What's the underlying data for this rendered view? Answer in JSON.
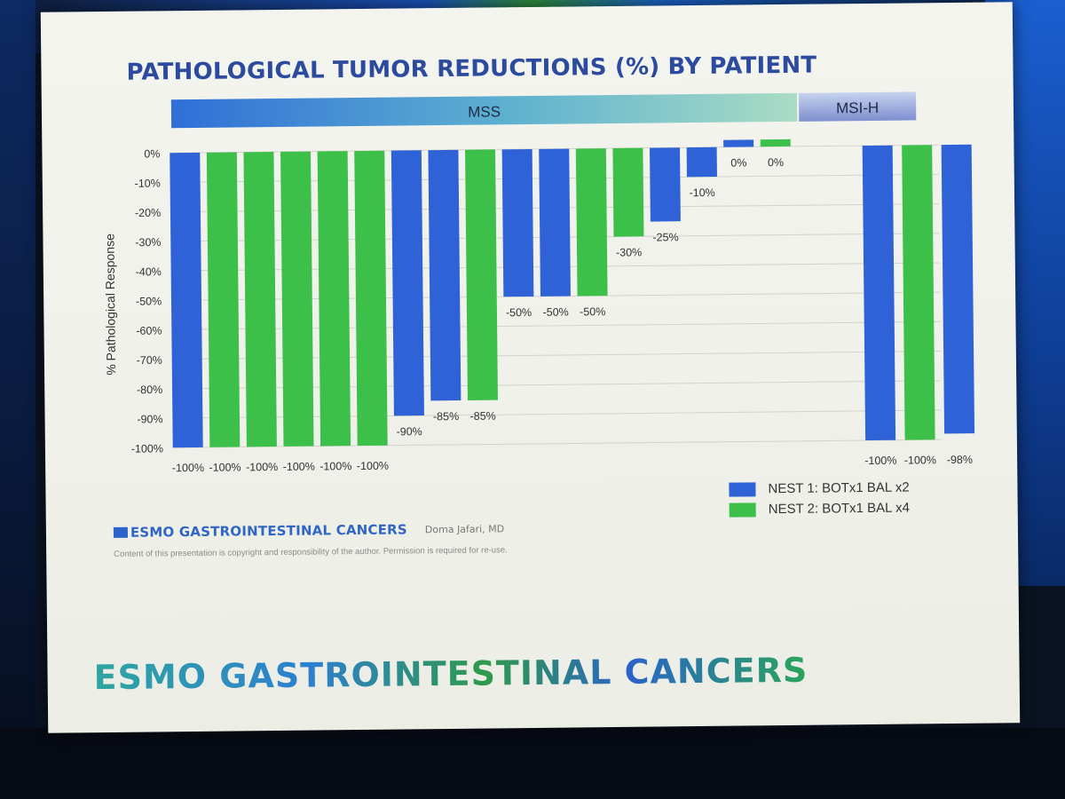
{
  "slide": {
    "title": "PATHOLOGICAL TUMOR REDUCTIONS (%) BY PATIENT",
    "footer_logo_small": "ESMO GASTROINTESTINAL CANCERS",
    "author": "Doma Jafari, MD",
    "copyright": "Content of this presentation is copyright and responsibility of the author. Permission is required for re-use.",
    "footer_logo_big": "ESMO GASTROINTESTINAL CANCERS"
  },
  "chart_data": {
    "type": "bar",
    "title": "PATHOLOGICAL TUMOR REDUCTIONS (%) BY PATIENT",
    "ylabel": "% Pathological Response",
    "xlabel": "",
    "ylim": [
      -100,
      0
    ],
    "yticks": [
      "0%",
      "-10%",
      "-20%",
      "-30%",
      "-40%",
      "-50%",
      "-60%",
      "-70%",
      "-80%",
      "-90%",
      "-100%"
    ],
    "grid": true,
    "legend_position": "bottom-right",
    "groups": [
      {
        "label": "MSS",
        "count": 17
      },
      {
        "label": "MSI-H",
        "count": 3
      }
    ],
    "series": [
      {
        "name": "NEST 1: BOTx1 BAL x2",
        "color": "#2f62d6"
      },
      {
        "name": "NEST 2: BOTx1 BAL x4",
        "color": "#3cc04a"
      }
    ],
    "bars": [
      {
        "value": -100,
        "label": "-100%",
        "series": 0
      },
      {
        "value": -100,
        "label": "-100%",
        "series": 1
      },
      {
        "value": -100,
        "label": "-100%",
        "series": 1
      },
      {
        "value": -100,
        "label": "-100%",
        "series": 1
      },
      {
        "value": -100,
        "label": "-100%",
        "series": 1
      },
      {
        "value": -100,
        "label": "-100%",
        "series": 1
      },
      {
        "value": -90,
        "label": "-90%",
        "series": 0
      },
      {
        "value": -85,
        "label": "-85%",
        "series": 0
      },
      {
        "value": -85,
        "label": "-85%",
        "series": 1
      },
      {
        "value": -50,
        "label": "-50%",
        "series": 0
      },
      {
        "value": -50,
        "label": "-50%",
        "series": 0
      },
      {
        "value": -50,
        "label": "-50%",
        "series": 1
      },
      {
        "value": -30,
        "label": "-30%",
        "series": 1
      },
      {
        "value": -25,
        "label": "-25%",
        "series": 0
      },
      {
        "value": -10,
        "label": "-10%",
        "series": 0
      },
      {
        "value": 0,
        "label": "0%",
        "series": 0
      },
      {
        "value": 0,
        "label": "0%",
        "series": 1
      },
      {
        "value": -100,
        "label": "-100%",
        "series": 0
      },
      {
        "value": -100,
        "label": "-100%",
        "series": 1
      },
      {
        "value": -98,
        "label": "-98%",
        "series": 0
      }
    ]
  }
}
